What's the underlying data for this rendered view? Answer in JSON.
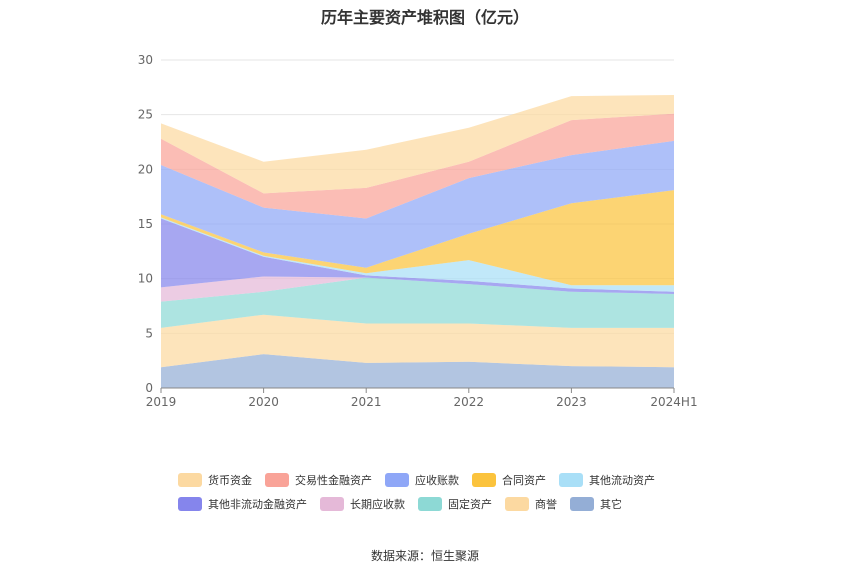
{
  "page": {
    "title": "历年主要资产堆积图（亿元）",
    "source": "数据来源：恒生聚源"
  },
  "chart_data": {
    "type": "area",
    "stacked": true,
    "title": "历年主要资产堆积图（亿元）",
    "categories": [
      "2019",
      "2020",
      "2021",
      "2022",
      "2023",
      "2024H1"
    ],
    "ylim": [
      0,
      30
    ],
    "yticks": [
      0,
      5,
      10,
      15,
      20,
      25,
      30
    ],
    "grid": true,
    "legend_position": "bottom",
    "series": [
      {
        "name": "其它",
        "color": "#94aed6",
        "values": [
          1.9,
          3.1,
          2.3,
          2.4,
          2.0,
          1.9
        ]
      },
      {
        "name": "商誉",
        "color": "#fcd9a1",
        "values": [
          3.6,
          3.6,
          3.6,
          3.5,
          3.5,
          3.6
        ]
      },
      {
        "name": "固定资产",
        "color": "#8dd9d5",
        "values": [
          2.4,
          2.1,
          4.2,
          3.6,
          3.3,
          3.1
        ]
      },
      {
        "name": "长期应收款",
        "color": "#e5b9d8",
        "values": [
          1.3,
          1.4,
          0.0,
          0.0,
          0.0,
          0.0
        ]
      },
      {
        "name": "其他非流动金融资产",
        "color": "#8585ec",
        "values": [
          6.3,
          1.8,
          0.2,
          0.3,
          0.3,
          0.2
        ]
      },
      {
        "name": "其他流动资产",
        "color": "#a9dff7",
        "values": [
          0.1,
          0.1,
          0.2,
          1.9,
          0.3,
          0.6
        ]
      },
      {
        "name": "合同资产",
        "color": "#fbc33d",
        "values": [
          0.3,
          0.3,
          0.5,
          2.4,
          7.5,
          8.7
        ]
      },
      {
        "name": "应收账款",
        "color": "#8fa7f7",
        "values": [
          4.5,
          4.1,
          4.5,
          5.1,
          4.4,
          4.5
        ]
      },
      {
        "name": "交易性金融资产",
        "color": "#f9a398",
        "values": [
          2.4,
          1.3,
          2.8,
          1.5,
          3.2,
          2.5
        ]
      },
      {
        "name": "货币资金",
        "color": "#fcd9a1",
        "values": [
          1.4,
          2.9,
          3.5,
          3.1,
          2.2,
          1.7
        ]
      }
    ],
    "legend": [
      {
        "name": "货币资金",
        "color": "#fcd9a1"
      },
      {
        "name": "交易性金融资产",
        "color": "#f9a398"
      },
      {
        "name": "应收账款",
        "color": "#8fa7f7"
      },
      {
        "name": "合同资产",
        "color": "#fbc33d"
      },
      {
        "name": "其他流动资产",
        "color": "#a9dff7"
      },
      {
        "name": "其他非流动金融资产",
        "color": "#8585ec"
      },
      {
        "name": "长期应收款",
        "color": "#e5b9d8"
      },
      {
        "name": "固定资产",
        "color": "#8dd9d5"
      },
      {
        "name": "商誉",
        "color": "#fcd9a1"
      },
      {
        "name": "其它",
        "color": "#94aed6"
      }
    ]
  }
}
